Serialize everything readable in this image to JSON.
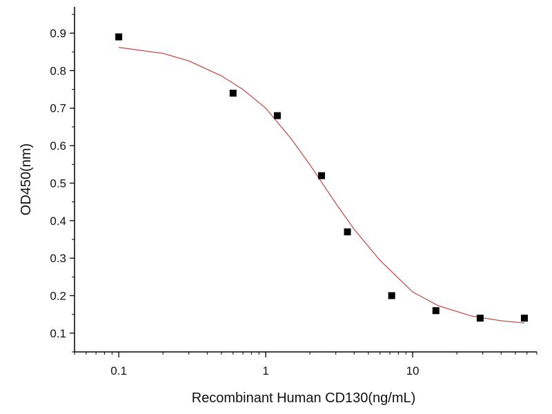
{
  "chart_data": {
    "type": "scatter",
    "title": "",
    "xlabel": "Recombinant Human CD130(ng/mL)",
    "ylabel": "OD450(nm)",
    "x_scale": "log",
    "xlim": [
      0.05,
      70
    ],
    "ylim": [
      0.05,
      0.97
    ],
    "x_tick_labels": [
      "0.1",
      "1",
      "10"
    ],
    "x_ticks": [
      0.1,
      1,
      10
    ],
    "y_tick_labels": [
      "0.1",
      "0.2",
      "0.3",
      "0.4",
      "0.5",
      "0.6",
      "0.7",
      "0.8",
      "0.9"
    ],
    "y_ticks": [
      0.1,
      0.2,
      0.3,
      0.4,
      0.5,
      0.6,
      0.7,
      0.8,
      0.9
    ],
    "grid": false,
    "series": [
      {
        "marker": "square",
        "color": "#000000",
        "x": [
          0.1,
          0.6,
          1.2,
          2.4,
          3.6,
          7.2,
          14.4,
          28.8,
          57.6
        ],
        "y": [
          0.89,
          0.74,
          0.68,
          0.52,
          0.37,
          0.2,
          0.16,
          0.14,
          0.14
        ]
      },
      {
        "type": "line",
        "color": "#c0504d",
        "x": [
          0.1,
          0.2,
          0.3,
          0.5,
          0.7,
          1.0,
          1.5,
          2.0,
          3.0,
          4.0,
          6.0,
          10.0,
          15.0,
          25.0,
          40.0,
          57.6
        ],
        "y": [
          0.862,
          0.846,
          0.826,
          0.786,
          0.75,
          0.7,
          0.617,
          0.549,
          0.446,
          0.377,
          0.294,
          0.21,
          0.173,
          0.146,
          0.133,
          0.127
        ]
      }
    ]
  }
}
